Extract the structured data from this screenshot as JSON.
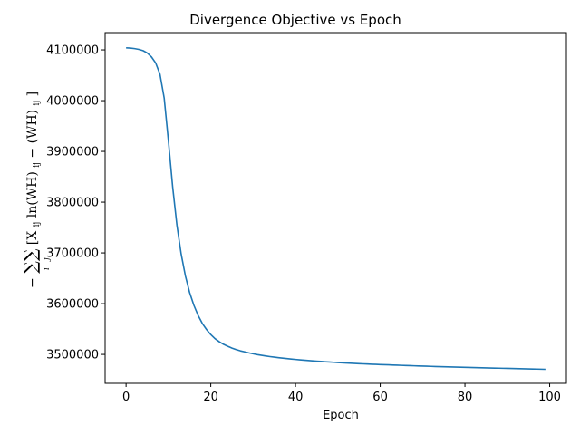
{
  "chart_data": {
    "type": "line",
    "title": "Divergence Objective vs Epoch",
    "xlabel": "Epoch",
    "ylabel": "−∑∑[X_ij ln(WH)_ij − (WH)_ij]",
    "ylabel_parts": {
      "minus": "−",
      "sums": "∑∑",
      "sub_i": "i",
      "sub_j": "j",
      "body": "[X",
      "body_sub": "ij",
      "ln": "ln(WH)",
      "ln_sub": "ij",
      "tail": " − (WH)",
      "tail_sub": "ij",
      "close": "]"
    },
    "xlim": [
      -4.95,
      103.95
    ],
    "ylim": [
      3443000,
      4134000
    ],
    "xticks": [
      0,
      20,
      40,
      60,
      80,
      100
    ],
    "yticks": [
      3500000,
      3600000,
      3700000,
      3800000,
      3900000,
      4000000,
      4100000
    ],
    "grid": false,
    "series": [
      {
        "color": "#1f77b4",
        "x": [
          0,
          1,
          2,
          3,
          4,
          5,
          6,
          7,
          8,
          9,
          10,
          11,
          12,
          13,
          14,
          15,
          16,
          17,
          18,
          19,
          20,
          21,
          22,
          23,
          24,
          25,
          26,
          27,
          28,
          29,
          30,
          31,
          32,
          33,
          34,
          35,
          36,
          37,
          38,
          39,
          40,
          41,
          42,
          43,
          44,
          45,
          46,
          47,
          48,
          49,
          50,
          51,
          52,
          53,
          54,
          55,
          56,
          57,
          58,
          59,
          60,
          61,
          62,
          63,
          64,
          65,
          66,
          67,
          68,
          69,
          70,
          71,
          72,
          73,
          74,
          75,
          76,
          77,
          78,
          79,
          80,
          81,
          82,
          83,
          84,
          85,
          86,
          87,
          88,
          89,
          90,
          91,
          92,
          93,
          94,
          95,
          96,
          97,
          98,
          99
        ],
        "y": [
          4104000,
          4103500,
          4102500,
          4101000,
          4098500,
          4094000,
          4086000,
          4074000,
          4052000,
          4005000,
          3920000,
          3830000,
          3755000,
          3698000,
          3655000,
          3622000,
          3597000,
          3577000,
          3561000,
          3549000,
          3539000,
          3531000,
          3525000,
          3520000,
          3516000,
          3512500,
          3509500,
          3507000,
          3505000,
          3503000,
          3501200,
          3499600,
          3498200,
          3496900,
          3495700,
          3494600,
          3493600,
          3492600,
          3491700,
          3490900,
          3490100,
          3489300,
          3488600,
          3487900,
          3487300,
          3486700,
          3486100,
          3485500,
          3485000,
          3484500,
          3484000,
          3483500,
          3483000,
          3482600,
          3482200,
          3481800,
          3481400,
          3481000,
          3480600,
          3480300,
          3480000,
          3479700,
          3479400,
          3479100,
          3478800,
          3478500,
          3478200,
          3477900,
          3477600,
          3477300,
          3477000,
          3476800,
          3476500,
          3476200,
          3476000,
          3475700,
          3475500,
          3475200,
          3475000,
          3474800,
          3474500,
          3474300,
          3474100,
          3473900,
          3473700,
          3473500,
          3473300,
          3473100,
          3472900,
          3472700,
          3472500,
          3472300,
          3472100,
          3471900,
          3471700,
          3471500,
          3471300,
          3471100,
          3470900,
          3470700
        ]
      }
    ],
    "xtick_labels": [
      "0",
      "20",
      "40",
      "60",
      "80",
      "100"
    ],
    "ytick_labels": [
      "3500000",
      "3600000",
      "3700000",
      "3800000",
      "3900000",
      "4000000",
      "4100000"
    ]
  }
}
